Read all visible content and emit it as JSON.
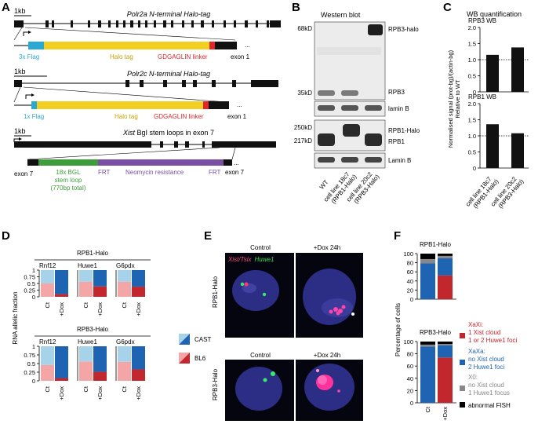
{
  "colors": {
    "flag": "#2aa9d2",
    "halo": "#f2cf22",
    "linker": "#e3262b",
    "neo": "#7a4fa3",
    "bgl": "#3d9d3a",
    "cast_dark": "#1f63b3",
    "cast_light": "#a6d3ea",
    "bl6_dark": "#c1272d",
    "bl6_light": "#f4a6a7",
    "x0": "#888888",
    "abnormal": "#000000"
  },
  "panelA": {
    "letter": "A",
    "scale": "1kb",
    "polr2a": {
      "title": "Polr2a N-terminal Halo-tag",
      "flag": "3x Flag",
      "halo": "Halo tag",
      "linker": "GDGAGLIN linker",
      "exon": "exon 1"
    },
    "polr2c": {
      "title": "Polr2c N-terminal Halo-tag",
      "flag": "1x Flag",
      "halo": "Halo tag",
      "linker": "GDGAGLIN linker",
      "exon": "exon 1"
    },
    "xist": {
      "title": "Xist BgI stem loops in exon 7",
      "exon_left": "exon 7",
      "exon_right": "exon 7",
      "bgl1": "18x BGL",
      "bgl2": "stem loop",
      "bgl3": "(770bp total)",
      "frt1": "FRT",
      "neo": "Neomycin resistance",
      "frt2": "FRT"
    }
  },
  "panelB": {
    "letter": "B",
    "title": "Western blot",
    "mw": [
      "68kD",
      "35kD",
      "250kD",
      "217kD"
    ],
    "bands": [
      "RPB3-halo",
      "RPB3",
      "lamin B",
      "RPB1-Halo",
      "RPB1",
      "Lamin B"
    ],
    "lanes": [
      "WT",
      "cell line 18c7",
      "(RPB1-Halo)",
      "cell line 20c2",
      "(RPB3-Halo)"
    ]
  },
  "panelC": {
    "letter": "C",
    "title": "WB quantification",
    "ylabel1": "Normalised signal (prot-bg)/(actin-bg)",
    "ylabel2": "Relative to WT",
    "lanes": [
      "cell line 18c7",
      "(RPB1-Halo)",
      "cell line 20c2",
      "(RPB3-Halo)"
    ]
  },
  "chart_data": [
    {
      "type": "bar",
      "title": "RPB3 WB",
      "categories": [
        "cell line 18c7 (RPB1-Halo)",
        "cell line 20c2 (RPB3-Halo)"
      ],
      "values": [
        1.15,
        1.38
      ],
      "ylim": [
        0,
        2
      ],
      "yticks": [
        "0",
        "0.5",
        "1.0",
        "1.5",
        "2.0"
      ]
    },
    {
      "type": "bar",
      "title": "RPB1 WB",
      "categories": [
        "cell line 18c7 (RPB1-Halo)",
        "cell line 20c2 (RPB3-Halo)"
      ],
      "values": [
        1.36,
        1.08
      ],
      "ylim": [
        0,
        2
      ],
      "yticks": [
        "0",
        "0.5",
        "1.0",
        "1.5",
        "2.0"
      ]
    },
    {
      "type": "bar",
      "title": "RPB1-Halo",
      "ylabel": "RNA allelic fraction",
      "groups": [
        "Rnf12",
        "Huwe1",
        "G6pdx"
      ],
      "categories": [
        "Ct",
        "+Dox"
      ],
      "series": [
        {
          "name": "BL6",
          "values": [
            [
              0.5,
              0.1
            ],
            [
              0.56,
              0.39
            ],
            [
              0.56,
              0.38
            ]
          ]
        },
        {
          "name": "CAST",
          "values": [
            [
              0.5,
              0.9
            ],
            [
              0.44,
              0.61
            ],
            [
              0.44,
              0.62
            ]
          ]
        }
      ],
      "yticks": [
        "0",
        "0.25",
        "0.5",
        "0.75",
        "1"
      ]
    },
    {
      "type": "bar",
      "title": "RPB3-Halo",
      "ylabel": "RNA allelic fraction",
      "groups": [
        "Rnf12",
        "Huwe1",
        "G6pdx"
      ],
      "categories": [
        "Ct",
        "+Dox"
      ],
      "series": [
        {
          "name": "BL6",
          "values": [
            [
              0.46,
              0.08
            ],
            [
              0.56,
              0.26
            ],
            [
              0.55,
              0.33
            ]
          ]
        },
        {
          "name": "CAST",
          "values": [
            [
              0.54,
              0.92
            ],
            [
              0.44,
              0.74
            ],
            [
              0.45,
              0.67
            ]
          ]
        }
      ],
      "yticks": [
        "0",
        "0.25",
        "0.5",
        "0.75",
        "1"
      ]
    },
    {
      "type": "bar",
      "title": "RPB1-Halo",
      "ylabel": "Percentage of cells",
      "categories": [
        "Ct",
        "+Dox"
      ],
      "series": [
        {
          "name": "XaXi",
          "values": [
            0,
            52
          ]
        },
        {
          "name": "XaXa",
          "values": [
            79,
            38
          ]
        },
        {
          "name": "X0",
          "values": [
            9,
            5
          ]
        },
        {
          "name": "abnormal FISH",
          "values": [
            12,
            5
          ]
        }
      ],
      "yticks": [
        "0",
        "20",
        "40",
        "60",
        "80",
        "100"
      ]
    },
    {
      "type": "bar",
      "title": "RPB3-Halo",
      "ylabel": "Percentage of cells",
      "categories": [
        "Ct",
        "+Dox"
      ],
      "series": [
        {
          "name": "XaXi",
          "values": [
            0,
            74
          ]
        },
        {
          "name": "XaXa",
          "values": [
            92,
            20
          ]
        },
        {
          "name": "X0",
          "values": [
            3,
            2
          ]
        },
        {
          "name": "abnormal FISH",
          "values": [
            5,
            4
          ]
        }
      ],
      "yticks": [
        "0",
        "20",
        "40",
        "60",
        "80",
        "100"
      ]
    }
  ],
  "panelD": {
    "letter": "D",
    "legend": [
      "CAST",
      "BL6"
    ],
    "xcats": [
      "Ct",
      "+Dox"
    ]
  },
  "panelE": {
    "letter": "E",
    "label_xist": "Xist/Tsix",
    "label_huwe": "Huwe1",
    "col1": "Control",
    "col2": "+Dox 24h",
    "row1": "RPB1-Halo",
    "row2": "RPB3-Halo"
  },
  "panelF": {
    "letter": "F",
    "legend": [
      {
        "head": "XaXi:",
        "l1": "1 Xist cloud",
        "l2": "1 or 2 Huwe1 foci"
      },
      {
        "head": "XaXa:",
        "l1": "no Xist cloud",
        "l2": "2 Huwe1 foci"
      },
      {
        "head": "X0:",
        "l1": "no Xist cloud",
        "l2": "1 Huwe1 focus"
      },
      {
        "head": "abnormal FISH"
      }
    ]
  }
}
